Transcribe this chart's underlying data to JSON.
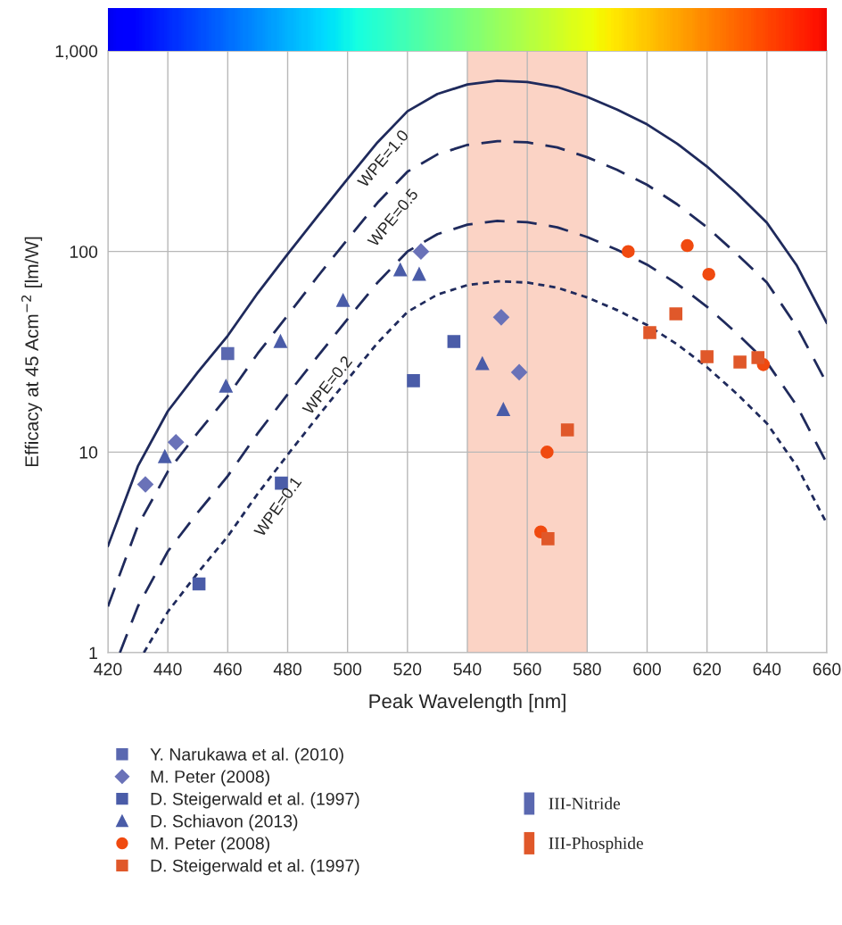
{
  "chart_data": {
    "type": "scatter",
    "xlabel": "Peak Wavelength [nm]",
    "ylabel": "Efficacy at 45 Acm$^{−2}$ [lm/W]",
    "log": "y",
    "xlim": [
      420,
      660
    ],
    "xticks": [
      420,
      440,
      460,
      480,
      500,
      520,
      540,
      560,
      580,
      600,
      620,
      640,
      660
    ],
    "ylim": [
      1,
      1000
    ],
    "yticks": [
      1,
      10,
      100,
      {
        "value": 1000,
        "label": "1,000"
      }
    ],
    "grid": true,
    "legend": "bottom left",
    "bands": [
      {
        "axis": "x",
        "from": 540,
        "to": 580,
        "color": "#fbd3c5"
      }
    ],
    "series": [
      {
        "name": "Y. Narukawa et al. (2010)",
        "marker": "square",
        "color": "#5a68b0",
        "x": [
          460
        ],
        "values": [
          31
        ]
      },
      {
        "name": "M. Peter (2008)",
        "marker": "diamond",
        "color": "#6a72b8",
        "x": [
          432.5,
          442.7,
          524.5,
          551.3,
          557.3
        ],
        "values": [
          6.9,
          11.2,
          100,
          47,
          25
        ]
      },
      {
        "name": "D. Steigerwald et al. (1997)",
        "marker": "square",
        "color": "#4a5ca8",
        "x": [
          450.4,
          477.9,
          522,
          535.5
        ],
        "values": [
          2.2,
          7,
          22.7,
          35.6
        ]
      },
      {
        "name": "D. Schiavon (2013)",
        "marker": "triangle",
        "color": "#4a5ca8",
        "x": [
          439,
          459.4,
          477.6,
          498.5,
          517.6,
          523.9,
          545,
          552
        ],
        "values": [
          9.5,
          21.3,
          35.6,
          57,
          81,
          77,
          27.6,
          16.3
        ]
      },
      {
        "name": "M. Peter (2008)",
        "marker": "circle",
        "color": "#f04a10",
        "x": [
          564.5,
          566.6,
          593.7,
          613.4,
          620.6,
          638.8
        ],
        "values": [
          4,
          10,
          100,
          107,
          77,
          27.3
        ]
      },
      {
        "name": "D. Steigerwald et al. (1997)",
        "marker": "square",
        "color": "#e0582a",
        "x": [
          566.9,
          573.4,
          600.9,
          609.6,
          620,
          631,
          637
        ],
        "values": [
          3.7,
          12.9,
          39.4,
          48.9,
          29.9,
          28.1,
          29.6
        ]
      },
      {
        "name": "WPE=1.0",
        "type": "line",
        "line_style": "solid",
        "color": "#1f2a5c",
        "x": [
          420,
          430,
          440,
          450,
          460,
          470,
          480,
          490,
          500,
          510,
          520,
          530,
          540,
          550,
          560,
          570,
          580,
          590,
          600,
          610,
          620,
          630,
          640,
          650,
          660
        ],
        "values": [
          3.4,
          8.5,
          16,
          25,
          38,
          62,
          97,
          150,
          230,
          350,
          500,
          610,
          680,
          710,
          700,
          660,
          590,
          510,
          430,
          345,
          265,
          195,
          139,
          85,
          44
        ]
      },
      {
        "name": "WPE=0.5",
        "type": "line",
        "line_style": "dashed",
        "color": "#1f2a5c",
        "x": [
          420,
          430,
          440,
          450,
          460,
          470,
          480,
          490,
          500,
          510,
          520,
          530,
          540,
          550,
          560,
          570,
          580,
          590,
          600,
          610,
          620,
          630,
          640,
          650,
          660
        ],
        "values": [
          1.7,
          4.3,
          8,
          12.5,
          19,
          31,
          48,
          75,
          115,
          175,
          250,
          305,
          340,
          355,
          350,
          330,
          295,
          255,
          215,
          172,
          132,
          97,
          70,
          42,
          22
        ]
      },
      {
        "name": "WPE=0.2",
        "type": "line",
        "line_style": "dashed",
        "color": "#1f2a5c",
        "x": [
          424,
          430,
          440,
          450,
          460,
          470,
          480,
          490,
          500,
          510,
          520,
          530,
          540,
          550,
          560,
          570,
          580,
          590,
          600,
          610,
          620,
          630,
          640,
          650,
          660
        ],
        "values": [
          1,
          1.7,
          3.2,
          5,
          7.6,
          12.4,
          19.4,
          30,
          46,
          70,
          100,
          122,
          136,
          142,
          140,
          132,
          118,
          102,
          86,
          69,
          53,
          39,
          28,
          17,
          8.8
        ]
      },
      {
        "name": "WPE=0.1",
        "type": "line",
        "line_style": "dotted",
        "color": "#1f2a5c",
        "x": [
          432,
          440,
          450,
          460,
          470,
          480,
          490,
          500,
          510,
          520,
          530,
          540,
          550,
          560,
          570,
          580,
          590,
          600,
          610,
          620,
          630,
          640,
          650,
          660
        ],
        "values": [
          1,
          1.6,
          2.5,
          3.8,
          6.2,
          9.7,
          15,
          23,
          35,
          50,
          61,
          68,
          71,
          70,
          66,
          59,
          51,
          43,
          34.5,
          26.5,
          19.5,
          13.9,
          8.5,
          4.4
        ]
      }
    ],
    "annotations": [
      "III-Nitride",
      "III-Phosphide"
    ]
  }
}
